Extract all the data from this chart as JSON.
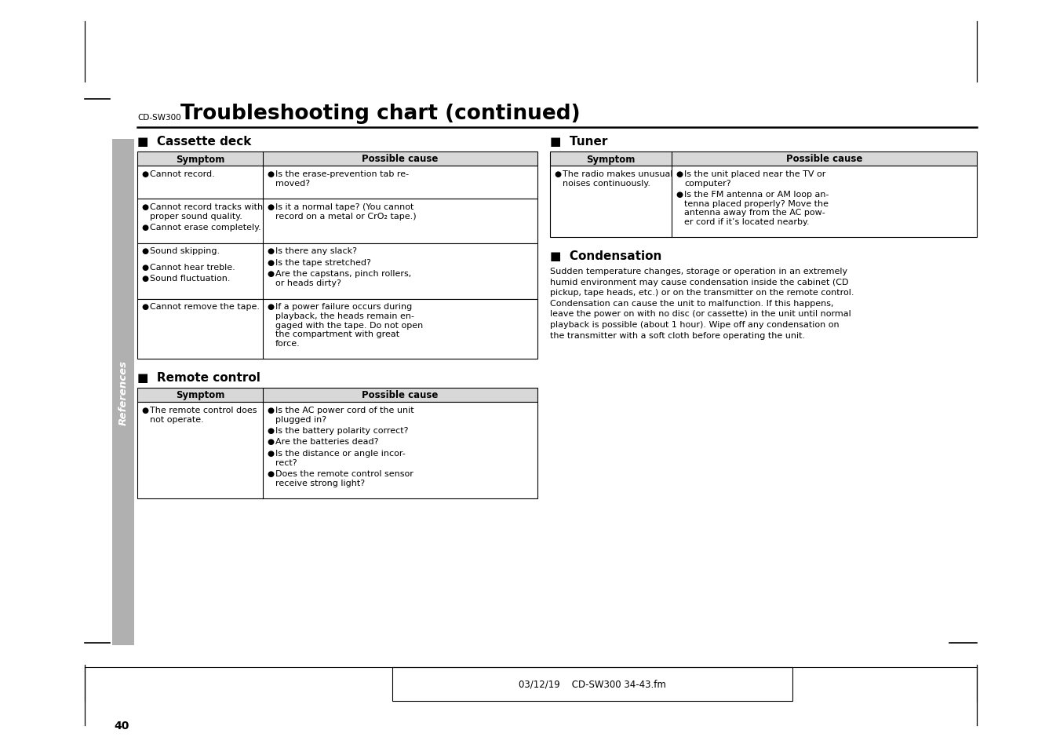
{
  "page_bg": "#ffffff",
  "sidebar_color": "#b0b0b0",
  "title_small": "CD-SW300",
  "title_large": "Troubleshooting chart (continued)",
  "page_number": "40",
  "footer_text": "03/12/19    CD-SW300 34-43.fm",
  "cassette_deck": {
    "section_title": "Cassette deck",
    "rows": [
      {
        "symptom": [
          "Cannot record."
        ],
        "cause": [
          "Is the erase-prevention tab re-\nmoved?"
        ]
      },
      {
        "symptom": [
          "Cannot record tracks with\nproper sound quality.",
          "Cannot erase completely."
        ],
        "cause": [
          "Is it a normal tape? (You cannot\nrecord on a metal or CrO₂ tape.)"
        ]
      },
      {
        "symptom": [
          "Sound skipping.",
          "",
          "Cannot hear treble.",
          "Sound fluctuation."
        ],
        "cause": [
          "Is there any slack?",
          "Is the tape stretched?",
          "Are the capstans, pinch rollers,\nor heads dirty?"
        ]
      },
      {
        "symptom": [
          "Cannot remove the tape."
        ],
        "cause": [
          "If a power failure occurs during\nplayback, the heads remain en-\ngaged with the tape. Do not open\nthe compartment with great\nforce."
        ]
      }
    ]
  },
  "tuner": {
    "section_title": "Tuner",
    "rows": [
      {
        "symptom": [
          "The radio makes unusual\nnoises continuously."
        ],
        "cause": [
          "Is the unit placed near the TV or\ncomputer?",
          "Is the FM antenna or AM loop an-\ntenna placed properly? Move the\nantenna away from the AC pow-\ner cord if it’s located nearby."
        ]
      }
    ]
  },
  "condensation": {
    "section_title": "Condensation",
    "text": "Sudden temperature changes, storage or operation in an extremely\nhumid environment may cause condensation inside the cabinet (CD\npickup, tape heads, etc.) or on the transmitter on the remote control.\nCondensation can cause the unit to malfunction. If this happens,\nleave the power on with no disc (or cassette) in the unit until normal\nplayback is possible (about 1 hour). Wipe off any condensation on\nthe transmitter with a soft cloth before operating the unit."
  },
  "remote_control": {
    "section_title": "Remote control",
    "rows": [
      {
        "symptom": [
          "The remote control does\nnot operate."
        ],
        "cause": [
          "Is the AC power cord of the unit\nplugged in?",
          "Is the battery polarity correct?",
          "Are the batteries dead?",
          "Is the distance or angle incor-\nrect?",
          "Does the remote control sensor\nreceive strong light?"
        ]
      }
    ]
  }
}
